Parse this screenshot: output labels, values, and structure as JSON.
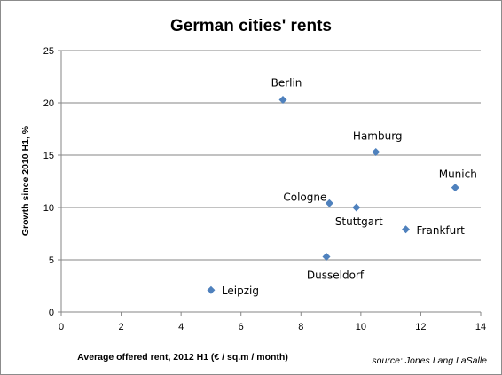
{
  "chart_data": {
    "type": "scatter",
    "title": "German cities' rents",
    "xlabel": "Average offered rent, 2012 H1 (€ / sq.m / month)",
    "ylabel": "Growth since 2010 H1, %",
    "xlim": [
      0,
      14
    ],
    "ylim": [
      0,
      25
    ],
    "x_ticks": [
      "0",
      "2",
      "4",
      "6",
      "8",
      "10",
      "12",
      "14"
    ],
    "y_ticks": [
      "0",
      "5",
      "10",
      "15",
      "20",
      "25"
    ],
    "grid": "horizontal",
    "marker_color": "#4f81bd",
    "source": "source: Jones Lang LaSalle",
    "points": [
      {
        "label": "Berlin",
        "x": 7.4,
        "y": 20.3
      },
      {
        "label": "Hamburg",
        "x": 10.5,
        "y": 15.3
      },
      {
        "label": "Munich",
        "x": 13.15,
        "y": 11.9
      },
      {
        "label": "Cologne",
        "x": 8.95,
        "y": 10.4
      },
      {
        "label": "Stuttgart",
        "x": 9.85,
        "y": 10.0
      },
      {
        "label": "Frankfurt",
        "x": 11.5,
        "y": 7.9
      },
      {
        "label": "Dusseldorf",
        "x": 8.85,
        "y": 5.3
      },
      {
        "label": "Leipzig",
        "x": 5.0,
        "y": 2.1
      }
    ]
  }
}
